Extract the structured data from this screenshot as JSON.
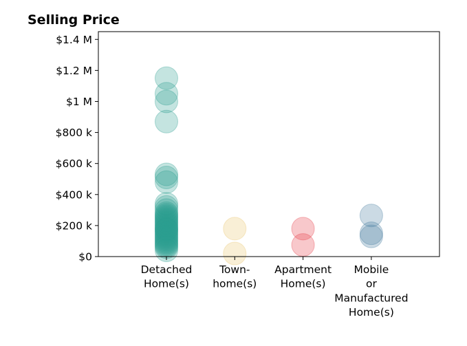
{
  "chart_data": {
    "type": "scatter",
    "title": "Selling Price",
    "xlabel": "",
    "ylabel": "",
    "categories": [
      [
        "Detached",
        "Home(s)"
      ],
      [
        "Town-",
        "home(s)"
      ],
      [
        "Apartment",
        "Home(s)"
      ],
      [
        "Mobile",
        "or",
        "Manufactured",
        "Home(s)"
      ]
    ],
    "y_ticks": [
      0,
      200000,
      400000,
      600000,
      800000,
      1000000,
      1200000,
      1400000
    ],
    "y_tick_labels": [
      "$0",
      "$200 k",
      "$400 k",
      "$600 k",
      "$800 k",
      "$1 M",
      "$1.2 M",
      "$1.4 M"
    ],
    "ylim": [
      0,
      1450000
    ],
    "grid": false,
    "series": [
      {
        "category_index": 0,
        "color": "#2a9d8f",
        "values": [
          1150000,
          1050000,
          1000000,
          870000,
          530000,
          510000,
          480000,
          340000,
          320000,
          300000,
          280000,
          270000,
          260000,
          250000,
          240000,
          230000,
          220000,
          210000,
          200000,
          190000,
          180000,
          175000,
          170000,
          160000,
          150000,
          140000,
          130000,
          120000,
          110000,
          100000,
          90000,
          80000,
          70000,
          60000,
          40000
        ]
      },
      {
        "category_index": 1,
        "color": "#e9c46a",
        "values": [
          180000,
          20000
        ]
      },
      {
        "category_index": 2,
        "color": "#e63946",
        "values": [
          180000,
          75000
        ]
      },
      {
        "category_index": 3,
        "color": "#457b9d",
        "values": [
          265000,
          150000,
          130000
        ]
      }
    ]
  }
}
